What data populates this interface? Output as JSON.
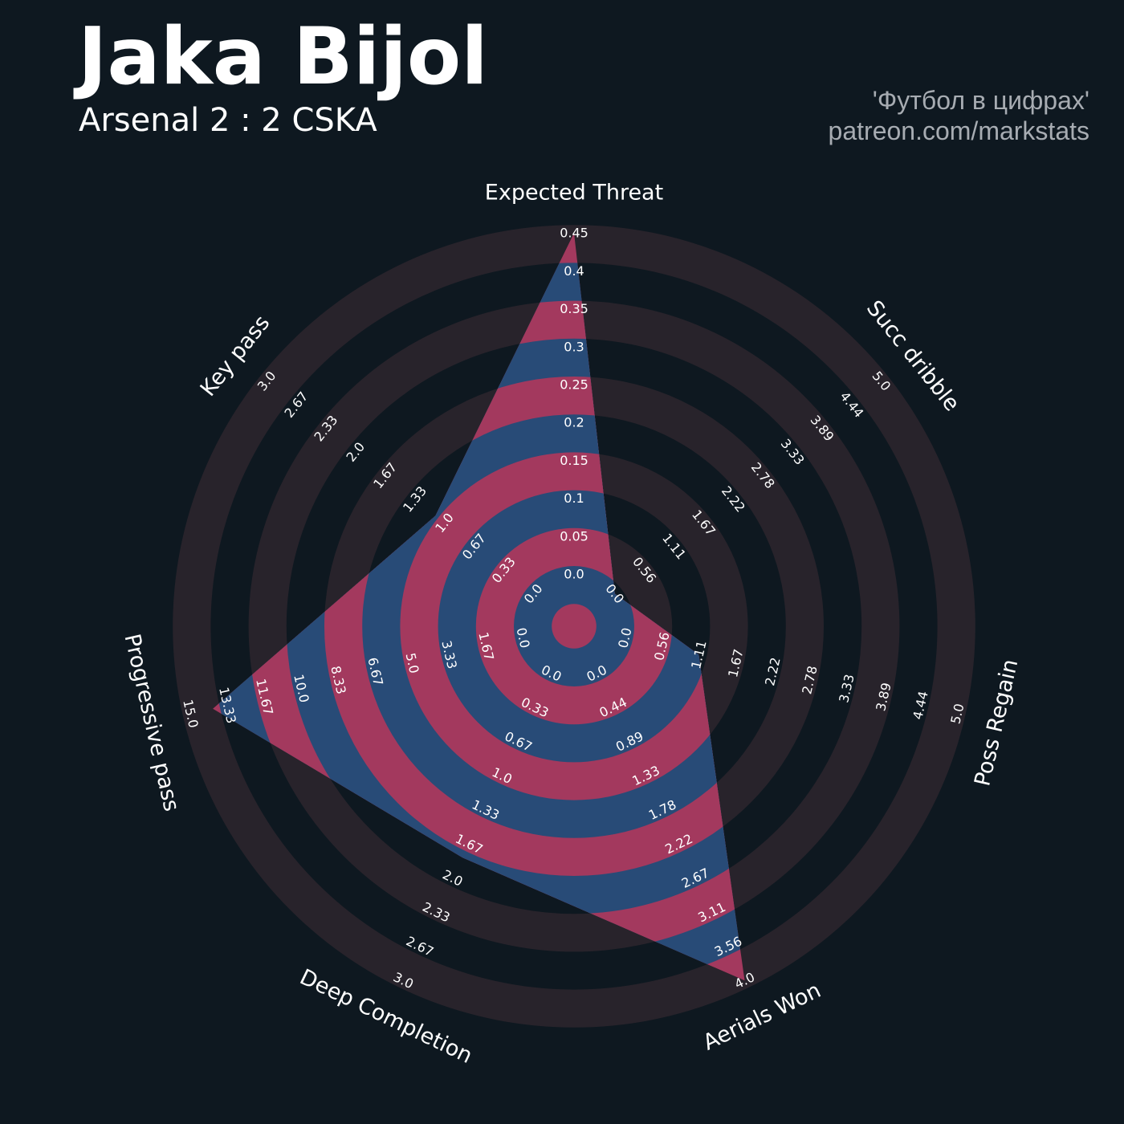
{
  "header": {
    "title": "Jaka Bijol",
    "subtitle": "Arsenal 2 : 2 CSKA"
  },
  "credit": {
    "line1": "'Футбол в цифрах'",
    "line2": "patreon.com/markstats"
  },
  "colors": {
    "background": "#0e1820",
    "ring_band": "#28232b",
    "ring_gap": "#0e1820",
    "shape_pink": "#a3395e",
    "shape_blue": "#284b77"
  },
  "chart_data": {
    "type": "radar",
    "title": "",
    "rings": 10,
    "axes": [
      {
        "name": "Expected Threat",
        "min": 0,
        "max": 0.45,
        "value": 0.45,
        "ticks": [
          "0.0",
          "0.05",
          "0.1",
          "0.15",
          "0.2",
          "0.25",
          "0.3",
          "0.35",
          "0.4",
          "0.45"
        ]
      },
      {
        "name": "Succ dribble",
        "min": 0,
        "max": 5.0,
        "value": 0.0,
        "ticks": [
          "0.0",
          "0.56",
          "1.11",
          "1.67",
          "2.22",
          "2.78",
          "3.33",
          "3.89",
          "4.44",
          "5.0"
        ]
      },
      {
        "name": "Poss Regain",
        "min": 0,
        "max": 5.0,
        "value": 1.11,
        "ticks": [
          "0.0",
          "0.56",
          "1.11",
          "1.67",
          "2.22",
          "2.78",
          "3.33",
          "3.89",
          "4.44",
          "5.0"
        ]
      },
      {
        "name": "Aerials Won",
        "min": 0,
        "max": 4.0,
        "value": 4.0,
        "ticks": [
          "0.0",
          "0.44",
          "0.89",
          "1.33",
          "1.78",
          "2.22",
          "2.67",
          "3.11",
          "3.56",
          "4.0"
        ]
      },
      {
        "name": "Deep Completion",
        "min": 0,
        "max": 3.0,
        "value": 1.8,
        "ticks": [
          "0.0",
          "0.33",
          "0.67",
          "1.0",
          "1.33",
          "1.67",
          "2.0",
          "2.33",
          "2.67",
          "3.0"
        ]
      },
      {
        "name": "Progressive pass",
        "min": 0,
        "max": 15.0,
        "value": 14.0,
        "ticks": [
          "0.0",
          "1.67",
          "3.33",
          "5.0",
          "6.67",
          "8.33",
          "10.0",
          "11.67",
          "13.33",
          "15.0"
        ]
      },
      {
        "name": "Key pass",
        "min": 0,
        "max": 3.0,
        "value": 1.1,
        "ticks": [
          "0.0",
          "0.33",
          "0.67",
          "1.0",
          "1.33",
          "1.67",
          "2.0",
          "2.33",
          "2.67",
          "3.0"
        ]
      }
    ]
  }
}
